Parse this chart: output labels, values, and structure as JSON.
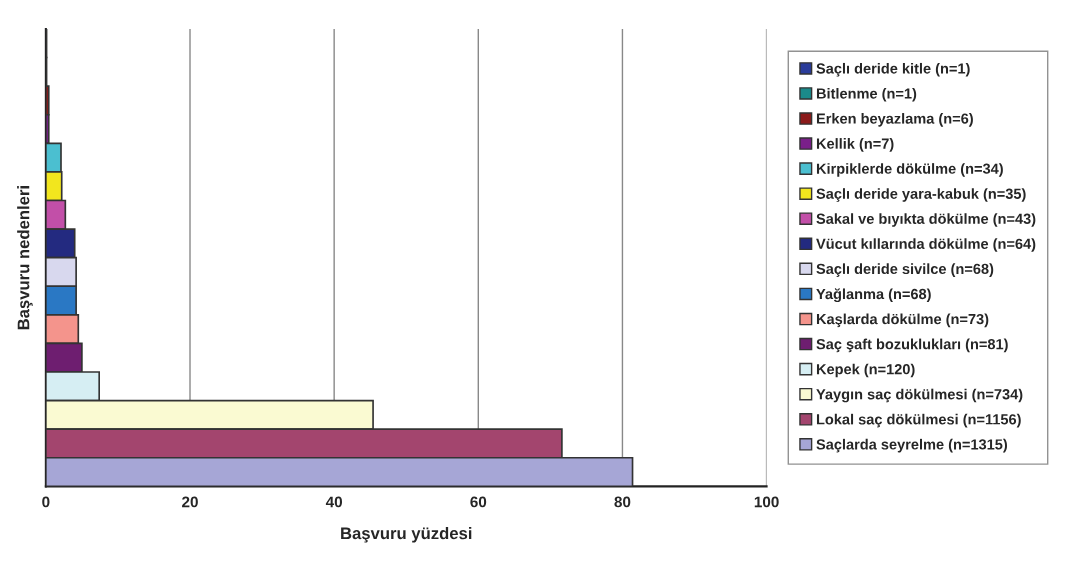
{
  "chart_data": {
    "type": "bar",
    "orientation": "horizontal",
    "xlabel": "Başvuru yüzdesi",
    "ylabel": "Başvuru nedenleri",
    "categories": [
      null,
      null,
      null,
      null,
      null,
      null,
      null,
      null,
      null,
      null,
      null,
      null,
      null,
      null,
      null,
      null
    ],
    "xlim": [
      0,
      100
    ],
    "xticks": [
      0,
      20,
      40,
      60,
      80,
      100
    ],
    "grid": "x",
    "legend": "right",
    "series": [
      {
        "name": "Saçlı deride kitle (n=1)",
        "color": "#2a3c9a",
        "values": [
          0.1,
          null,
          null,
          null,
          null,
          null,
          null,
          null,
          null,
          null,
          null,
          null,
          null,
          null,
          null,
          null
        ]
      },
      {
        "name": "Bitlenme (n=1)",
        "color": "#1a8a8a",
        "values": [
          null,
          0.1,
          null,
          null,
          null,
          null,
          null,
          null,
          null,
          null,
          null,
          null,
          null,
          null,
          null,
          null
        ]
      },
      {
        "name": "Erken beyazlama (n=6)",
        "color": "#8b1a1a",
        "values": [
          null,
          null,
          0.4,
          null,
          null,
          null,
          null,
          null,
          null,
          null,
          null,
          null,
          null,
          null,
          null,
          null
        ]
      },
      {
        "name": "Kellik (n=7)",
        "color": "#7a1f8a",
        "values": [
          null,
          null,
          null,
          0.4,
          null,
          null,
          null,
          null,
          null,
          null,
          null,
          null,
          null,
          null,
          null,
          null
        ]
      },
      {
        "name": "Kirpiklerde dökülme (n=34)",
        "color": "#4bbfd0",
        "values": [
          null,
          null,
          null,
          null,
          2.1,
          null,
          null,
          null,
          null,
          null,
          null,
          null,
          null,
          null,
          null,
          null
        ]
      },
      {
        "name": "Saçlı deride yara-kabuk (n=35)",
        "color": "#f2e61e",
        "values": [
          null,
          null,
          null,
          null,
          null,
          2.2,
          null,
          null,
          null,
          null,
          null,
          null,
          null,
          null,
          null,
          null
        ]
      },
      {
        "name": "Sakal ve bıyıkta dökülme (n=43)",
        "color": "#c24fa8",
        "values": [
          null,
          null,
          null,
          null,
          null,
          null,
          2.7,
          null,
          null,
          null,
          null,
          null,
          null,
          null,
          null,
          null
        ]
      },
      {
        "name": "Vücut kıllarında dökülme (n=64)",
        "color": "#232a80",
        "values": [
          null,
          null,
          null,
          null,
          null,
          null,
          null,
          4.0,
          null,
          null,
          null,
          null,
          null,
          null,
          null,
          null
        ]
      },
      {
        "name": "Saçlı deride sivilce (n=68)",
        "color": "#d8d8ee",
        "values": [
          null,
          null,
          null,
          null,
          null,
          null,
          null,
          null,
          4.2,
          null,
          null,
          null,
          null,
          null,
          null,
          null
        ]
      },
      {
        "name": "Yağlanma (n=68)",
        "color": "#2a78c4",
        "values": [
          null,
          null,
          null,
          null,
          null,
          null,
          null,
          null,
          null,
          4.2,
          null,
          null,
          null,
          null,
          null,
          null
        ]
      },
      {
        "name": "Kaşlarda dökülme (n=73)",
        "color": "#f4948c",
        "values": [
          null,
          null,
          null,
          null,
          null,
          null,
          null,
          null,
          null,
          null,
          4.5,
          null,
          null,
          null,
          null,
          null
        ]
      },
      {
        "name": "Saç şaft bozuklukları (n=81)",
        "color": "#6e1e70",
        "values": [
          null,
          null,
          null,
          null,
          null,
          null,
          null,
          null,
          null,
          null,
          null,
          5.0,
          null,
          null,
          null,
          null
        ]
      },
      {
        "name": "Kepek (n=120)",
        "color": "#d6eef3",
        "values": [
          null,
          null,
          null,
          null,
          null,
          null,
          null,
          null,
          null,
          null,
          null,
          null,
          7.4,
          null,
          null,
          null
        ]
      },
      {
        "name": "Yaygın saç dökülmesi (n=734)",
        "color": "#fafad2",
        "values": [
          null,
          null,
          null,
          null,
          null,
          null,
          null,
          null,
          null,
          null,
          null,
          null,
          null,
          45.4,
          null,
          null
        ]
      },
      {
        "name": "Lokal saç dökülmesi (n=1156)",
        "color": "#a3456e",
        "values": [
          null,
          null,
          null,
          null,
          null,
          null,
          null,
          null,
          null,
          null,
          null,
          null,
          null,
          null,
          71.6,
          null
        ]
      },
      {
        "name": "Saçlarda seyrelme (n=1315)",
        "color": "#a6a6d6",
        "values": [
          null,
          null,
          null,
          null,
          null,
          null,
          null,
          null,
          null,
          null,
          null,
          null,
          null,
          null,
          null,
          81.4
        ]
      }
    ]
  }
}
